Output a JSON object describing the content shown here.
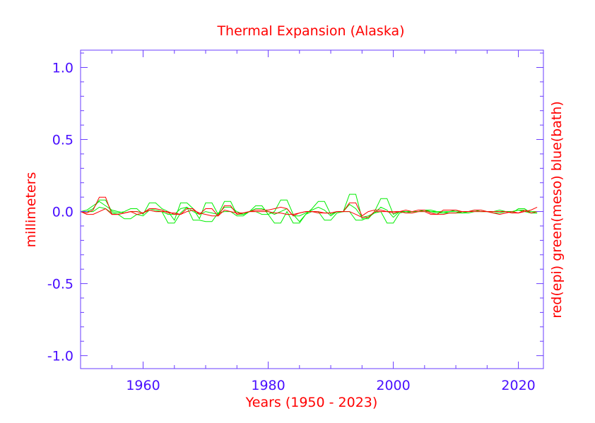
{
  "chart_data": {
    "type": "line",
    "title": "Thermal Expansion (Alaska)",
    "xlabel": "Years (1950 - 2023)",
    "ylabel": "millimeters",
    "ylabel_right": "red(epi) green(meso) blue(bath)",
    "xlim": [
      1950,
      2024
    ],
    "ylim": [
      -1.09,
      1.12
    ],
    "x_ticks": [
      1960,
      1980,
      2000,
      2020
    ],
    "x_tick_labels": [
      "1960",
      "1980",
      "2000",
      "2020"
    ],
    "y_ticks": [
      -1.0,
      -0.5,
      0.0,
      0.5,
      1.0
    ],
    "y_tick_labels": [
      "-1.0",
      "-0.5",
      "0.0",
      "0.5",
      "1.0"
    ],
    "grid": false,
    "colors": {
      "axis": "#6a3cff",
      "tick_label": "#4a10ff",
      "title": "#ff0000",
      "red": "#ff0000",
      "green": "#00ee00"
    },
    "x_start": 1950,
    "series": [
      {
        "color": "#00ee00",
        "values": [
          0,
          0,
          0.02,
          0.08,
          0.08,
          0.0,
          -0.01,
          0.0,
          0.02,
          0.02,
          -0.02,
          0.06,
          0.06,
          0.02,
          0.0,
          -0.06,
          0.06,
          0.06,
          0.02,
          -0.05,
          0.06,
          0.06,
          -0.02,
          0.07,
          0.07,
          -0.02,
          -0.02,
          0.0,
          0.04,
          0.04,
          -0.02,
          0.0,
          0.08,
          0.08,
          -0.02,
          -0.07,
          -0.02,
          0.02,
          0.07,
          0.07,
          -0.02,
          0.0,
          0.0,
          0.12,
          0.12,
          -0.05,
          -0.05,
          0.0,
          0.09,
          0.09,
          -0.02,
          0.0,
          0.0,
          -0.01,
          0.0,
          0.01,
          0.01,
          0.0,
          -0.01,
          0.0,
          0.01,
          -0.01,
          0.0,
          0.01,
          0.01,
          0.0,
          0.0,
          0.01,
          0.0,
          -0.01,
          0.02,
          0.02,
          -0.01,
          -0.01
        ]
      },
      {
        "color": "#00ee00",
        "values": [
          0,
          0,
          0.0,
          0.03,
          0.02,
          -0.01,
          -0.02,
          -0.05,
          -0.05,
          -0.02,
          -0.03,
          0.01,
          0.0,
          0.0,
          -0.08,
          -0.08,
          -0.01,
          0.03,
          -0.06,
          -0.06,
          -0.07,
          -0.07,
          -0.01,
          0.0,
          0.0,
          -0.03,
          -0.03,
          0.0,
          0.0,
          -0.02,
          -0.02,
          -0.08,
          -0.08,
          0.0,
          -0.08,
          -0.08,
          -0.02,
          0.0,
          0.0,
          -0.06,
          -0.06,
          -0.01,
          0.0,
          0.0,
          -0.06,
          -0.06,
          -0.04,
          -0.01,
          0.0,
          -0.08,
          -0.08,
          -0.01,
          0.0,
          0.0,
          0.0,
          0.0,
          0.0,
          -0.01,
          -0.01,
          -0.01,
          -0.01,
          -0.01,
          -0.01,
          0.0,
          0.0,
          0.0,
          -0.01,
          -0.01,
          0.0,
          0.0,
          0.01,
          0.0,
          -0.01,
          -0.01
        ]
      },
      {
        "color": "#00ee00",
        "values": [
          0,
          0.01,
          0.04,
          0.07,
          0.04,
          0.01,
          0.0,
          -0.01,
          0.0,
          0.0,
          -0.01,
          0.02,
          0.01,
          0.0,
          -0.02,
          -0.02,
          0.02,
          0.03,
          0.0,
          -0.02,
          0.0,
          -0.01,
          -0.02,
          0.03,
          0.03,
          0.0,
          -0.02,
          0.0,
          0.02,
          0.02,
          0.0,
          -0.02,
          0.0,
          0.02,
          -0.03,
          -0.03,
          -0.01,
          0.01,
          0.03,
          0.01,
          -0.03,
          0.0,
          0.0,
          0.05,
          0.02,
          -0.04,
          -0.03,
          -0.01,
          0.03,
          0.01,
          -0.04,
          0.0,
          0.0,
          0.0,
          0.0,
          0.01,
          0.0,
          0.0,
          0.0,
          0.0,
          0.0,
          -0.01,
          0.0,
          0.01,
          0.0,
          0.0,
          0.0,
          0.0,
          0.0,
          0.0,
          0.01,
          0.01,
          0.0,
          0.0
        ]
      },
      {
        "color": "#ff0000",
        "values": [
          0,
          -0.01,
          0.01,
          0.1,
          0.1,
          -0.02,
          -0.02,
          -0.01,
          0.0,
          -0.02,
          -0.01,
          0.02,
          0.02,
          0.01,
          -0.01,
          -0.01,
          -0.02,
          0.02,
          0.02,
          -0.02,
          0.02,
          0.02,
          -0.03,
          0.04,
          0.04,
          -0.02,
          -0.01,
          0.0,
          0.01,
          0.01,
          0.01,
          0.02,
          0.03,
          0.02,
          -0.03,
          -0.01,
          0.0,
          0.0,
          0.0,
          -0.01,
          -0.01,
          0.0,
          0.0,
          0.06,
          0.06,
          -0.03,
          0.0,
          0.01,
          0.01,
          0.0,
          0.0,
          0.0,
          0.01,
          0.0,
          0.01,
          0.01,
          -0.01,
          -0.02,
          0.01,
          0.01,
          0.01,
          0.0,
          0.0,
          0.01,
          0.01,
          0.0,
          -0.01,
          -0.02,
          -0.01,
          0.0,
          -0.01,
          0.0,
          0.01,
          0.03
        ]
      },
      {
        "color": "#ff0000",
        "values": [
          0,
          -0.02,
          -0.02,
          0.0,
          0.02,
          -0.02,
          -0.02,
          -0.01,
          0.0,
          0.0,
          -0.01,
          0.01,
          0.0,
          0.0,
          0.0,
          -0.02,
          -0.02,
          0.0,
          0.01,
          -0.01,
          -0.02,
          -0.03,
          -0.03,
          0.01,
          0.0,
          -0.01,
          -0.01,
          0.0,
          0.0,
          0.0,
          0.0,
          -0.01,
          -0.01,
          -0.02,
          -0.02,
          -0.01,
          0.0,
          0.0,
          -0.01,
          -0.01,
          -0.01,
          0.0,
          0.0,
          0.0,
          -0.02,
          -0.04,
          -0.04,
          0.0,
          0.0,
          0.0,
          -0.01,
          0.0,
          -0.01,
          -0.01,
          0.0,
          0.0,
          -0.02,
          -0.02,
          -0.02,
          -0.01,
          -0.01,
          0.0,
          0.0,
          0.0,
          0.0,
          0.0,
          0.0,
          0.0,
          0.0,
          -0.01,
          -0.01,
          0.01,
          -0.01,
          0.0
        ]
      }
    ]
  }
}
